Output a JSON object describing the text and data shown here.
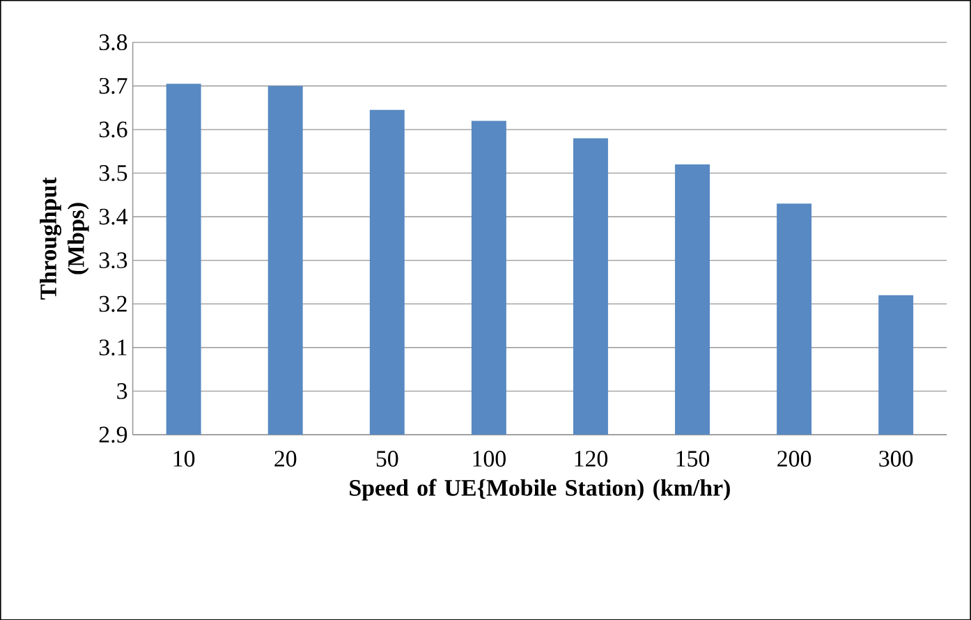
{
  "chart_data": {
    "type": "bar",
    "xlabel": "Speed of UE{Mobile Station) (km/hr)",
    "ylabel": "Throughput (Mbps)",
    "categories": [
      "10",
      "20",
      "50",
      "100",
      "120",
      "150",
      "200",
      "300"
    ],
    "values": [
      3.705,
      3.7,
      3.645,
      3.62,
      3.58,
      3.52,
      3.43,
      3.22
    ],
    "color": "#5889c2",
    "ylim": [
      2.9,
      3.8
    ],
    "yticks": [
      2.9,
      3,
      3.1,
      3.2,
      3.3,
      3.4,
      3.5,
      3.6,
      3.7,
      3.8
    ],
    "grid": "y"
  }
}
